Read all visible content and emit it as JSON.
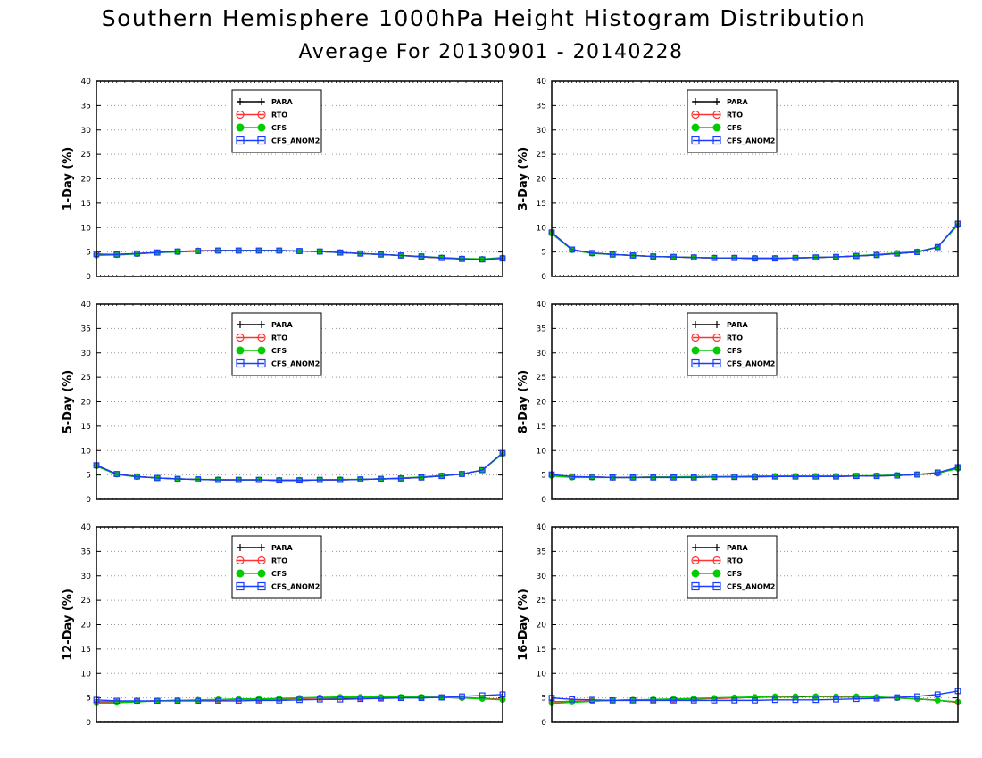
{
  "header": {
    "title": "Southern Hemisphere 1000hPa Height Histogram Distribution",
    "subtitle": "Average For 20130901 - 20140228"
  },
  "colors": {
    "PARA": "#000000",
    "RTO": "#ff3333",
    "CFS": "#00cc00",
    "CFS_ANOM2": "#1a3cff",
    "grid": "#999999"
  },
  "chart_data": [
    {
      "type": "line",
      "ylabel": "1-Day (%)",
      "ylim": [
        0,
        40
      ],
      "yticks": [
        0,
        5,
        10,
        15,
        20,
        25,
        30,
        35,
        40
      ],
      "x": [
        1,
        2,
        3,
        4,
        5,
        6,
        7,
        8,
        9,
        10,
        11,
        12,
        13,
        14,
        15,
        16,
        17,
        18,
        19,
        20,
        21
      ],
      "grid": true,
      "legend": "top-left",
      "series": [
        {
          "name": "PARA",
          "values": [
            4.4,
            4.5,
            4.7,
            4.9,
            5.1,
            5.2,
            5.3,
            5.3,
            5.3,
            5.3,
            5.2,
            5.1,
            4.9,
            4.7,
            4.5,
            4.3,
            4.0,
            3.8,
            3.6,
            3.5,
            3.8
          ]
        },
        {
          "name": "RTO",
          "values": [
            4.4,
            4.5,
            4.7,
            4.9,
            5.1,
            5.3,
            5.3,
            5.3,
            5.3,
            5.3,
            5.2,
            5.1,
            4.9,
            4.7,
            4.5,
            4.3,
            4.0,
            3.8,
            3.6,
            3.5,
            3.8
          ]
        },
        {
          "name": "CFS",
          "values": [
            4.3,
            4.4,
            4.6,
            4.9,
            5.0,
            5.2,
            5.3,
            5.3,
            5.3,
            5.3,
            5.2,
            5.1,
            4.9,
            4.7,
            4.5,
            4.3,
            4.1,
            3.9,
            3.7,
            3.6,
            3.9
          ]
        },
        {
          "name": "CFS_ANOM2",
          "values": [
            4.6,
            4.5,
            4.7,
            4.9,
            5.1,
            5.2,
            5.3,
            5.3,
            5.3,
            5.3,
            5.2,
            5.1,
            4.9,
            4.7,
            4.5,
            4.3,
            4.1,
            3.8,
            3.6,
            3.5,
            3.7
          ]
        }
      ]
    },
    {
      "type": "line",
      "ylabel": "3-Day (%)",
      "ylim": [
        0,
        40
      ],
      "yticks": [
        0,
        5,
        10,
        15,
        20,
        25,
        30,
        35,
        40
      ],
      "x": [
        1,
        2,
        3,
        4,
        5,
        6,
        7,
        8,
        9,
        10,
        11,
        12,
        13,
        14,
        15,
        16,
        17,
        18,
        19,
        20,
        21
      ],
      "grid": true,
      "legend": "top-left",
      "series": [
        {
          "name": "PARA",
          "values": [
            9.0,
            5.5,
            4.8,
            4.5,
            4.3,
            4.1,
            4.0,
            3.9,
            3.8,
            3.8,
            3.7,
            3.7,
            3.8,
            3.9,
            4.0,
            4.2,
            4.4,
            4.7,
            5.0,
            6.0,
            10.8
          ]
        },
        {
          "name": "RTO",
          "values": [
            9.0,
            5.5,
            4.8,
            4.5,
            4.3,
            4.1,
            4.0,
            3.9,
            3.8,
            3.8,
            3.7,
            3.7,
            3.8,
            3.9,
            4.0,
            4.2,
            4.4,
            4.7,
            5.0,
            6.0,
            10.8
          ]
        },
        {
          "name": "CFS",
          "values": [
            8.8,
            5.4,
            4.7,
            4.5,
            4.3,
            4.1,
            4.0,
            3.9,
            3.8,
            3.8,
            3.8,
            3.8,
            3.8,
            3.9,
            4.0,
            4.2,
            4.5,
            4.8,
            5.1,
            6.0,
            10.5
          ]
        },
        {
          "name": "CFS_ANOM2",
          "values": [
            9.0,
            5.5,
            4.8,
            4.5,
            4.3,
            4.1,
            4.0,
            3.9,
            3.8,
            3.8,
            3.7,
            3.7,
            3.8,
            3.9,
            4.0,
            4.2,
            4.4,
            4.7,
            5.0,
            6.0,
            10.8
          ]
        }
      ]
    },
    {
      "type": "line",
      "ylabel": "5-Day (%)",
      "ylim": [
        0,
        40
      ],
      "yticks": [
        0,
        5,
        10,
        15,
        20,
        25,
        30,
        35,
        40
      ],
      "x": [
        1,
        2,
        3,
        4,
        5,
        6,
        7,
        8,
        9,
        10,
        11,
        12,
        13,
        14,
        15,
        16,
        17,
        18,
        19,
        20,
        21
      ],
      "grid": true,
      "legend": "top-left",
      "series": [
        {
          "name": "PARA",
          "values": [
            7.0,
            5.2,
            4.7,
            4.4,
            4.2,
            4.1,
            4.0,
            4.0,
            4.0,
            3.9,
            3.9,
            4.0,
            4.0,
            4.1,
            4.2,
            4.3,
            4.5,
            4.8,
            5.2,
            6.0,
            9.5
          ]
        },
        {
          "name": "RTO",
          "values": [
            7.0,
            5.2,
            4.7,
            4.4,
            4.2,
            4.1,
            4.0,
            4.0,
            4.0,
            3.9,
            3.9,
            4.0,
            4.0,
            4.1,
            4.2,
            4.3,
            4.5,
            4.8,
            5.2,
            6.0,
            9.5
          ]
        },
        {
          "name": "CFS",
          "values": [
            6.8,
            5.1,
            4.6,
            4.4,
            4.2,
            4.1,
            4.1,
            4.0,
            4.0,
            4.0,
            4.0,
            4.0,
            4.1,
            4.1,
            4.2,
            4.4,
            4.6,
            4.9,
            5.2,
            6.0,
            9.3
          ]
        },
        {
          "name": "CFS_ANOM2",
          "values": [
            7.0,
            5.2,
            4.7,
            4.4,
            4.2,
            4.1,
            4.0,
            4.0,
            4.0,
            3.9,
            3.9,
            4.0,
            4.0,
            4.1,
            4.2,
            4.3,
            4.5,
            4.8,
            5.2,
            6.0,
            9.5
          ]
        }
      ]
    },
    {
      "type": "line",
      "ylabel": "8-Day (%)",
      "ylim": [
        0,
        40
      ],
      "yticks": [
        0,
        5,
        10,
        15,
        20,
        25,
        30,
        35,
        40
      ],
      "x": [
        1,
        2,
        3,
        4,
        5,
        6,
        7,
        8,
        9,
        10,
        11,
        12,
        13,
        14,
        15,
        16,
        17,
        18,
        19,
        20,
        21
      ],
      "grid": true,
      "legend": "top-left",
      "series": [
        {
          "name": "PARA",
          "values": [
            5.0,
            4.6,
            4.6,
            4.5,
            4.5,
            4.6,
            4.6,
            4.6,
            4.6,
            4.7,
            4.7,
            4.7,
            4.7,
            4.7,
            4.7,
            4.8,
            4.8,
            4.9,
            5.1,
            5.4,
            6.5
          ]
        },
        {
          "name": "RTO",
          "values": [
            5.0,
            4.6,
            4.6,
            4.5,
            4.5,
            4.6,
            4.6,
            4.6,
            4.6,
            4.7,
            4.7,
            4.7,
            4.8,
            4.7,
            4.7,
            4.8,
            4.8,
            4.9,
            5.1,
            5.3,
            6.5
          ]
        },
        {
          "name": "CFS",
          "values": [
            4.8,
            4.5,
            4.5,
            4.5,
            4.5,
            4.6,
            4.6,
            4.7,
            4.7,
            4.7,
            4.8,
            4.8,
            4.8,
            4.8,
            4.8,
            4.8,
            4.9,
            5.0,
            5.1,
            5.4,
            6.3
          ]
        },
        {
          "name": "CFS_ANOM2",
          "values": [
            5.1,
            4.7,
            4.6,
            4.5,
            4.5,
            4.5,
            4.5,
            4.5,
            4.6,
            4.6,
            4.6,
            4.7,
            4.7,
            4.7,
            4.7,
            4.8,
            4.8,
            4.9,
            5.1,
            5.5,
            6.6
          ]
        }
      ]
    },
    {
      "type": "line",
      "ylabel": "12-Day (%)",
      "ylim": [
        0,
        40
      ],
      "yticks": [
        0,
        5,
        10,
        15,
        20,
        25,
        30,
        35,
        40
      ],
      "x": [
        1,
        2,
        3,
        4,
        5,
        6,
        7,
        8,
        9,
        10,
        11,
        12,
        13,
        14,
        15,
        16,
        17,
        18,
        19,
        20,
        21
      ],
      "grid": true,
      "legend": "top-left",
      "series": [
        {
          "name": "PARA",
          "values": [
            4.2,
            4.2,
            4.3,
            4.4,
            4.5,
            4.5,
            4.6,
            4.7,
            4.7,
            4.8,
            4.9,
            5.0,
            5.0,
            5.0,
            5.0,
            5.1,
            5.1,
            5.1,
            5.0,
            4.9,
            4.7
          ]
        },
        {
          "name": "RTO",
          "values": [
            4.2,
            4.2,
            4.3,
            4.4,
            4.5,
            4.5,
            4.6,
            4.7,
            4.7,
            4.8,
            4.9,
            5.0,
            5.1,
            5.0,
            5.0,
            5.1,
            5.1,
            5.1,
            5.0,
            4.9,
            4.7
          ]
        },
        {
          "name": "CFS",
          "values": [
            3.9,
            4.0,
            4.2,
            4.4,
            4.5,
            4.6,
            4.7,
            4.8,
            4.8,
            4.9,
            5.0,
            5.1,
            5.2,
            5.2,
            5.2,
            5.2,
            5.2,
            5.1,
            5.0,
            4.8,
            4.6
          ]
        },
        {
          "name": "CFS_ANOM2",
          "values": [
            4.6,
            4.4,
            4.4,
            4.4,
            4.4,
            4.4,
            4.4,
            4.4,
            4.5,
            4.5,
            4.6,
            4.7,
            4.7,
            4.8,
            4.9,
            5.0,
            5.0,
            5.1,
            5.3,
            5.5,
            5.7
          ]
        }
      ]
    },
    {
      "type": "line",
      "ylabel": "16-Day (%)",
      "ylim": [
        0,
        40
      ],
      "yticks": [
        0,
        5,
        10,
        15,
        20,
        25,
        30,
        35,
        40
      ],
      "x": [
        1,
        2,
        3,
        4,
        5,
        6,
        7,
        8,
        9,
        10,
        11,
        12,
        13,
        14,
        15,
        16,
        17,
        18,
        19,
        20,
        21
      ],
      "grid": true,
      "legend": "top-left",
      "series": [
        {
          "name": "PARA",
          "values": [
            4.2,
            4.3,
            4.4,
            4.5,
            4.6,
            4.6,
            4.7,
            4.8,
            4.9,
            5.0,
            5.1,
            5.2,
            5.2,
            5.3,
            5.2,
            5.2,
            5.1,
            5.0,
            4.8,
            4.5,
            4.1
          ]
        },
        {
          "name": "RTO",
          "values": [
            4.2,
            4.3,
            4.4,
            4.5,
            4.6,
            4.6,
            4.7,
            4.8,
            4.9,
            5.0,
            5.1,
            5.2,
            5.3,
            5.3,
            5.2,
            5.2,
            5.1,
            5.0,
            4.8,
            4.5,
            4.1
          ]
        },
        {
          "name": "CFS",
          "values": [
            3.9,
            4.1,
            4.3,
            4.5,
            4.6,
            4.7,
            4.8,
            4.9,
            5.0,
            5.1,
            5.2,
            5.3,
            5.3,
            5.3,
            5.3,
            5.3,
            5.2,
            5.0,
            4.8,
            4.5,
            4.2
          ]
        },
        {
          "name": "CFS_ANOM2",
          "values": [
            5.0,
            4.7,
            4.6,
            4.5,
            4.5,
            4.5,
            4.5,
            4.5,
            4.5,
            4.5,
            4.5,
            4.6,
            4.6,
            4.6,
            4.7,
            4.8,
            4.9,
            5.1,
            5.3,
            5.7,
            6.4
          ]
        }
      ]
    }
  ]
}
